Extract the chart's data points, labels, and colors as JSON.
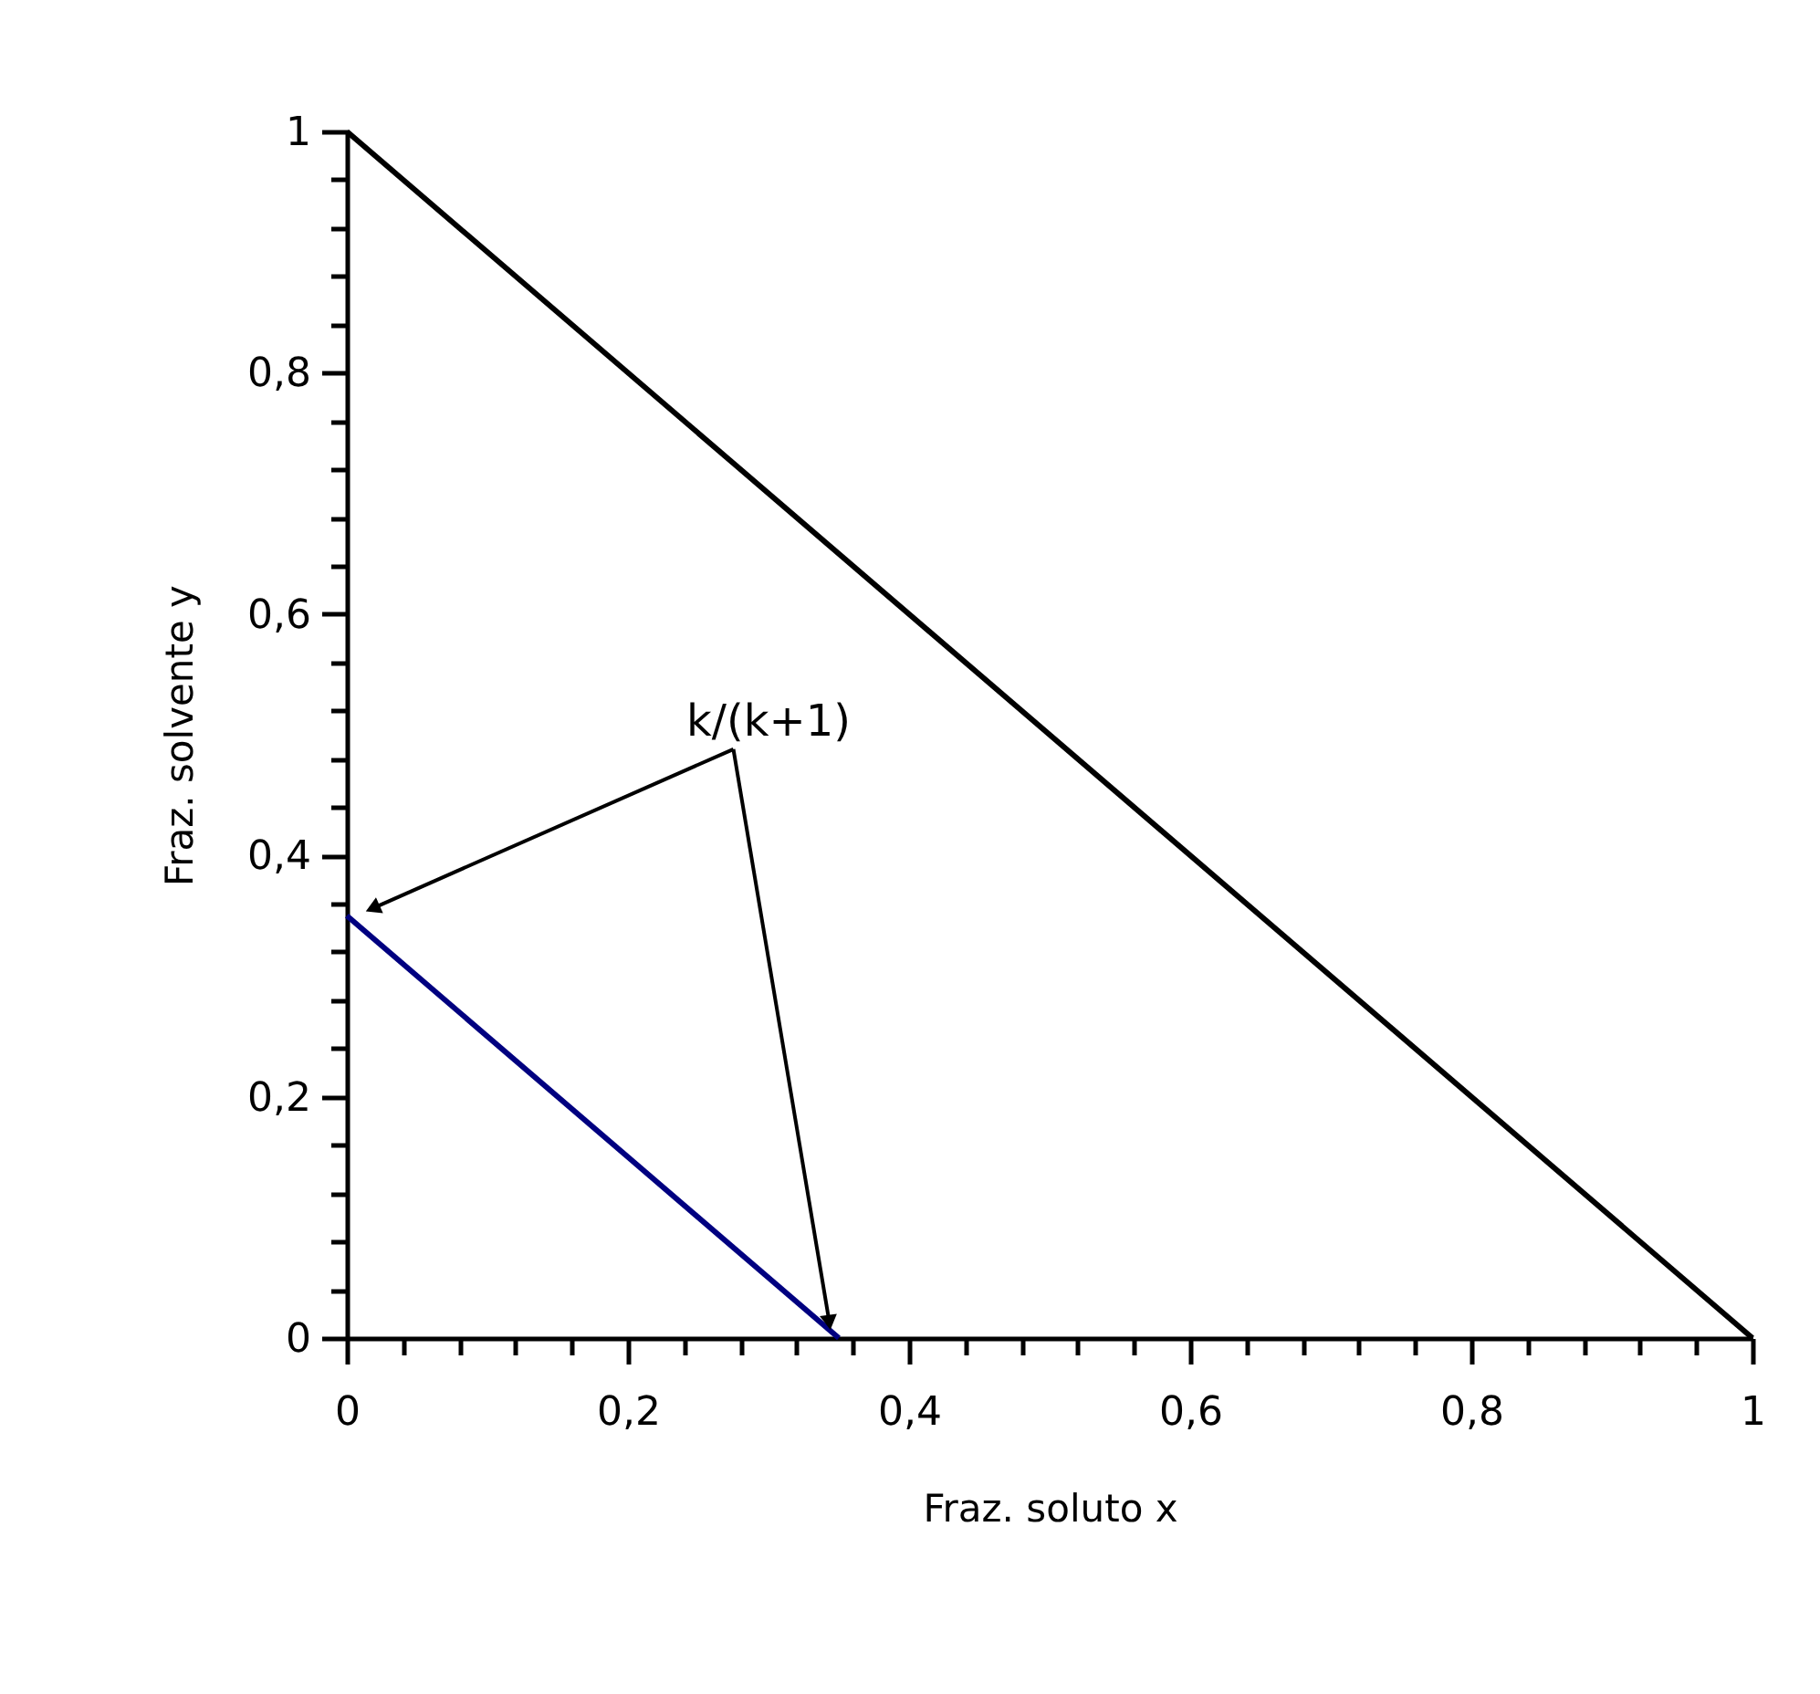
{
  "chart_data": {
    "type": "line",
    "xlabel": "Fraz. soluto x",
    "ylabel": "Fraz. solvente y",
    "series": [
      {
        "color": "#000000",
        "x": [
          0,
          1
        ],
        "values": [
          1,
          0
        ]
      },
      {
        "color": "#000080",
        "x": [
          0,
          0.35
        ],
        "values": [
          0.35,
          0
        ]
      }
    ],
    "xlim": [
      0,
      1
    ],
    "ylim": [
      0,
      1
    ],
    "xticks": [
      0,
      {
        "value": 0.04,
        "label": null
      },
      {
        "value": 0.08,
        "label": null
      },
      {
        "value": 0.12,
        "label": null
      },
      {
        "value": 0.16,
        "label": null
      },
      {
        "value": 0.2,
        "label": "0,2"
      },
      {
        "value": 0.24,
        "label": null
      },
      {
        "value": 0.28,
        "label": null
      },
      {
        "value": 0.32,
        "label": null
      },
      {
        "value": 0.36,
        "label": null
      },
      {
        "value": 0.4,
        "label": "0,4"
      },
      {
        "value": 0.44,
        "label": null
      },
      {
        "value": 0.48,
        "label": null
      },
      {
        "value": 0.52,
        "label": null
      },
      {
        "value": 0.56,
        "label": null
      },
      {
        "value": 0.6,
        "label": "0,6"
      },
      {
        "value": 0.64,
        "label": null
      },
      {
        "value": 0.68,
        "label": null
      },
      {
        "value": 0.72,
        "label": null
      },
      {
        "value": 0.76,
        "label": null
      },
      {
        "value": 0.8,
        "label": "0,8"
      },
      {
        "value": 0.84,
        "label": null
      },
      {
        "value": 0.88,
        "label": null
      },
      {
        "value": 0.92,
        "label": null
      },
      {
        "value": 0.96,
        "label": null
      },
      1
    ],
    "yticks": [
      0,
      {
        "value": 0.04,
        "label": null
      },
      {
        "value": 0.08,
        "label": null
      },
      {
        "value": 0.12,
        "label": null
      },
      {
        "value": 0.16,
        "label": null
      },
      {
        "value": 0.2,
        "label": "0,2"
      },
      {
        "value": 0.24,
        "label": null
      },
      {
        "value": 0.28,
        "label": null
      },
      {
        "value": 0.32,
        "label": null
      },
      {
        "value": 0.36,
        "label": null
      },
      {
        "value": 0.4,
        "label": "0,4"
      },
      {
        "value": 0.44,
        "label": null
      },
      {
        "value": 0.48,
        "label": null
      },
      {
        "value": 0.52,
        "label": null
      },
      {
        "value": 0.56,
        "label": null
      },
      {
        "value": 0.6,
        "label": "0,6"
      },
      {
        "value": 0.64,
        "label": null
      },
      {
        "value": 0.68,
        "label": null
      },
      {
        "value": 0.72,
        "label": null
      },
      {
        "value": 0.76,
        "label": null
      },
      {
        "value": 0.8,
        "label": "0,8"
      },
      {
        "value": 0.84,
        "label": null
      },
      {
        "value": 0.88,
        "label": null
      },
      {
        "value": 0.92,
        "label": null
      },
      {
        "value": 0.96,
        "label": null
      },
      1
    ],
    "annotations": [
      "k/(k+1)"
    ],
    "grid": false,
    "marker": "none",
    "line_style": "solid"
  }
}
